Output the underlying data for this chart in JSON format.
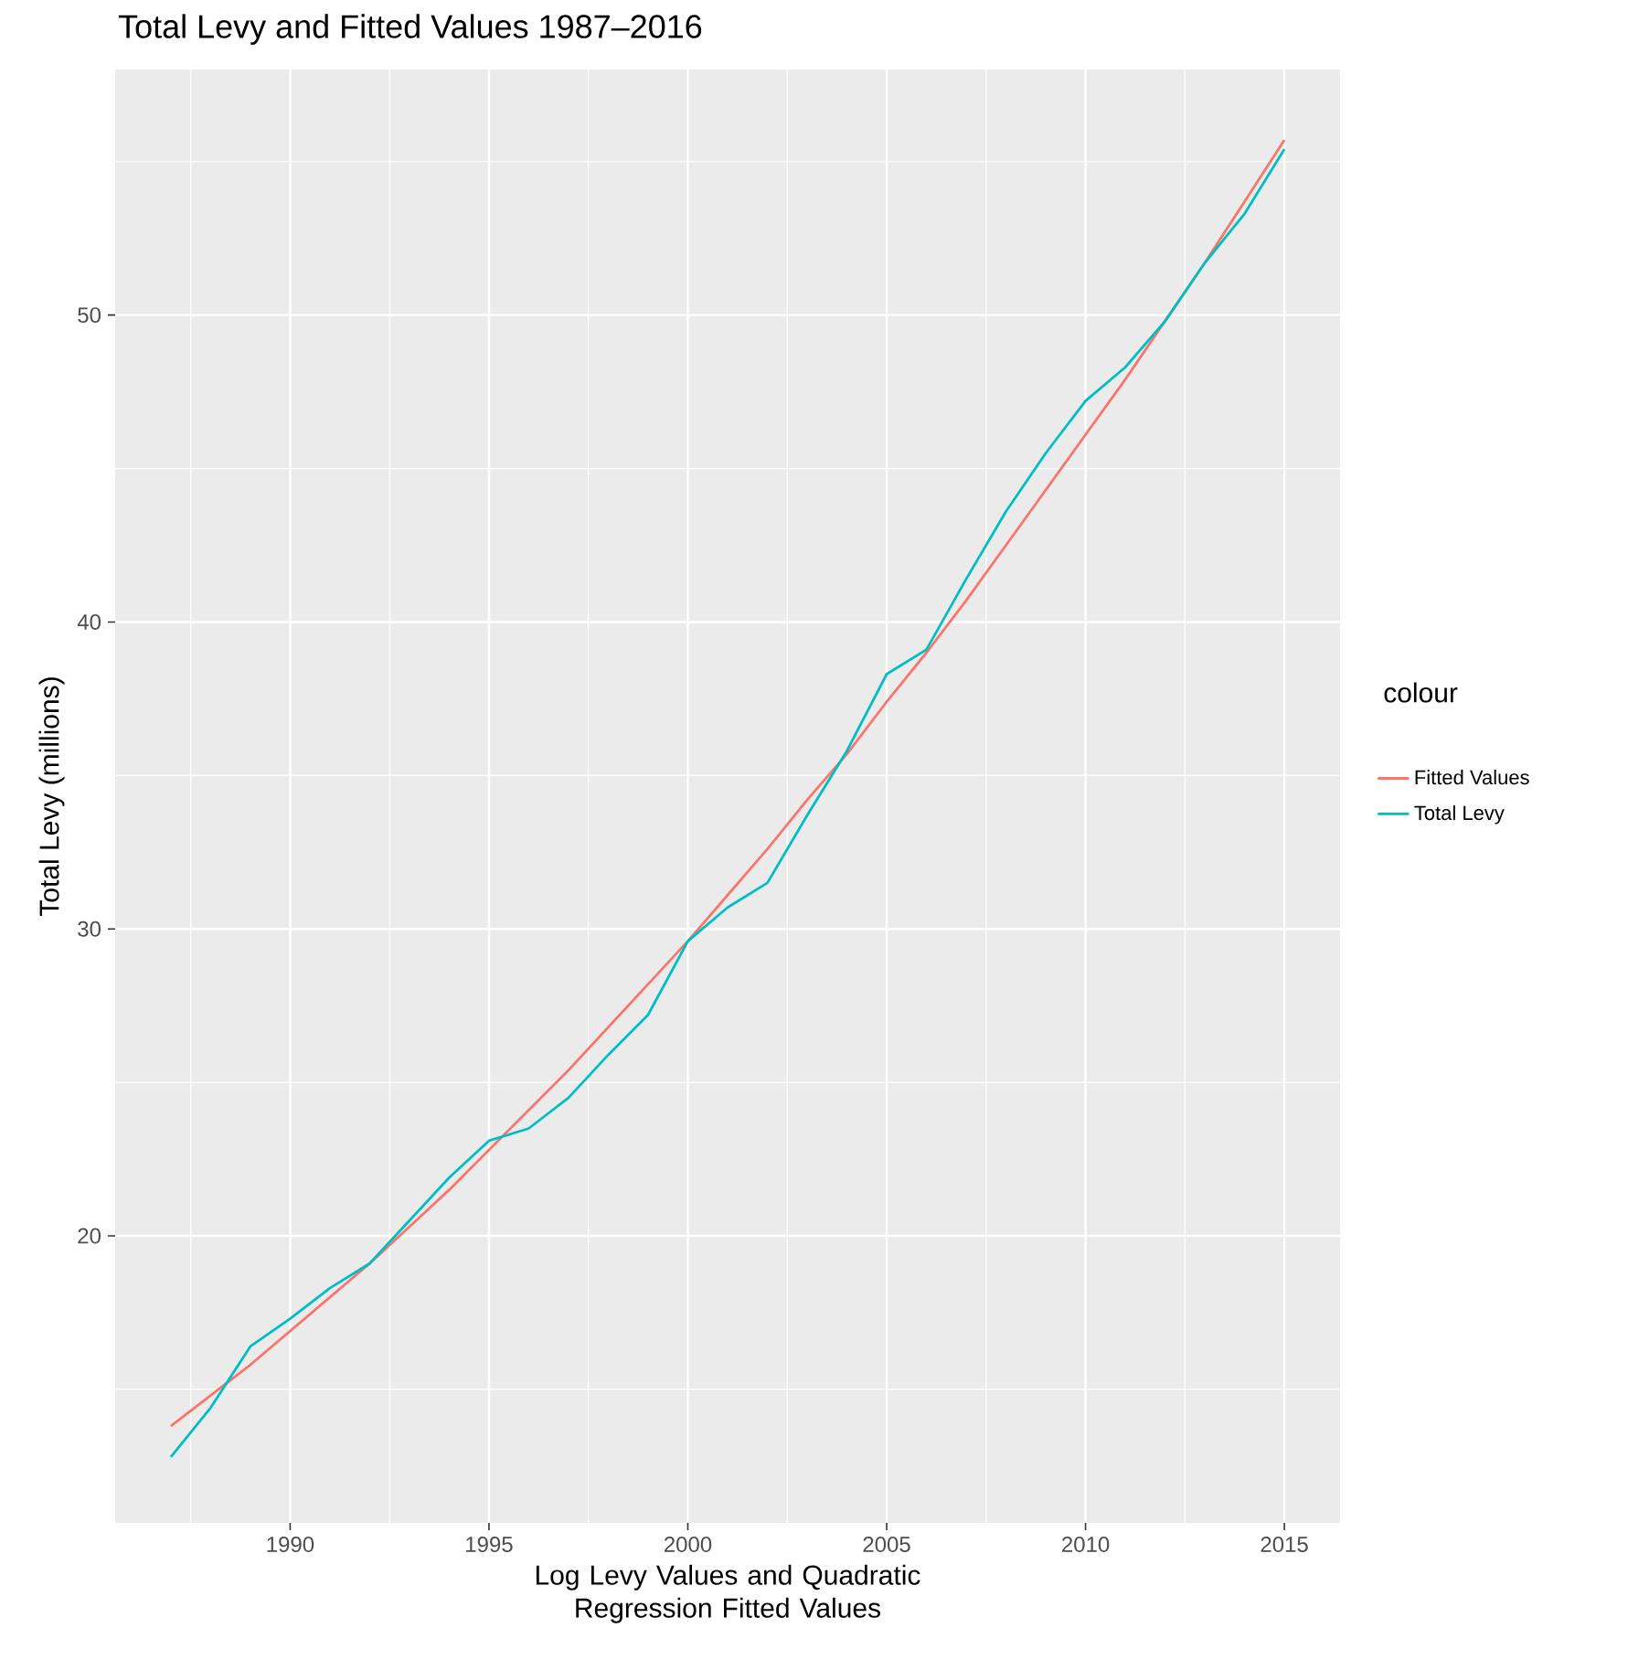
{
  "chart_data": {
    "type": "line",
    "title": "Total Levy and Fitted Values 1987–2016",
    "xlabel": "Log Levy Values and Quadratic Regression Fitted Values",
    "ylabel": "Total Levy (millions)",
    "legend_title": "colour",
    "x": [
      1987,
      1988,
      1989,
      1990,
      1991,
      1992,
      1993,
      1994,
      1995,
      1996,
      1997,
      1998,
      1999,
      2000,
      2001,
      2002,
      2003,
      2004,
      2005,
      2006,
      2007,
      2008,
      2009,
      2010,
      2011,
      2012,
      2013,
      2014,
      2015
    ],
    "series": [
      {
        "name": "Fitted Values",
        "color": "#f8766d",
        "values": [
          13.8,
          14.8,
          15.8,
          16.9,
          18.0,
          19.1,
          20.3,
          21.5,
          22.8,
          24.1,
          25.4,
          26.8,
          28.2,
          29.6,
          31.1,
          32.6,
          34.2,
          35.7,
          37.4,
          39.0,
          40.7,
          42.5,
          44.3,
          46.1,
          47.9,
          49.8,
          51.7,
          53.7,
          55.7
        ]
      },
      {
        "name": "Total Levy",
        "color": "#00bfc4",
        "values": [
          12.8,
          14.4,
          16.4,
          17.3,
          18.3,
          19.1,
          20.5,
          21.9,
          23.1,
          23.5,
          24.5,
          25.9,
          27.2,
          29.6,
          30.7,
          31.5,
          33.7,
          35.8,
          38.3,
          39.1,
          41.4,
          43.6,
          45.5,
          47.2,
          48.3,
          49.8,
          51.7,
          53.3,
          55.4
        ]
      }
    ],
    "xlim": [
      1985.6,
      2016.4
    ],
    "ylim": [
      10.65,
      58
    ],
    "xticks": [
      1990,
      1995,
      2000,
      2005,
      2010,
      2015
    ],
    "yticks": [
      20,
      30,
      40,
      50
    ],
    "grid": true,
    "legend": "right",
    "line_style": "solid",
    "marker": "none"
  }
}
